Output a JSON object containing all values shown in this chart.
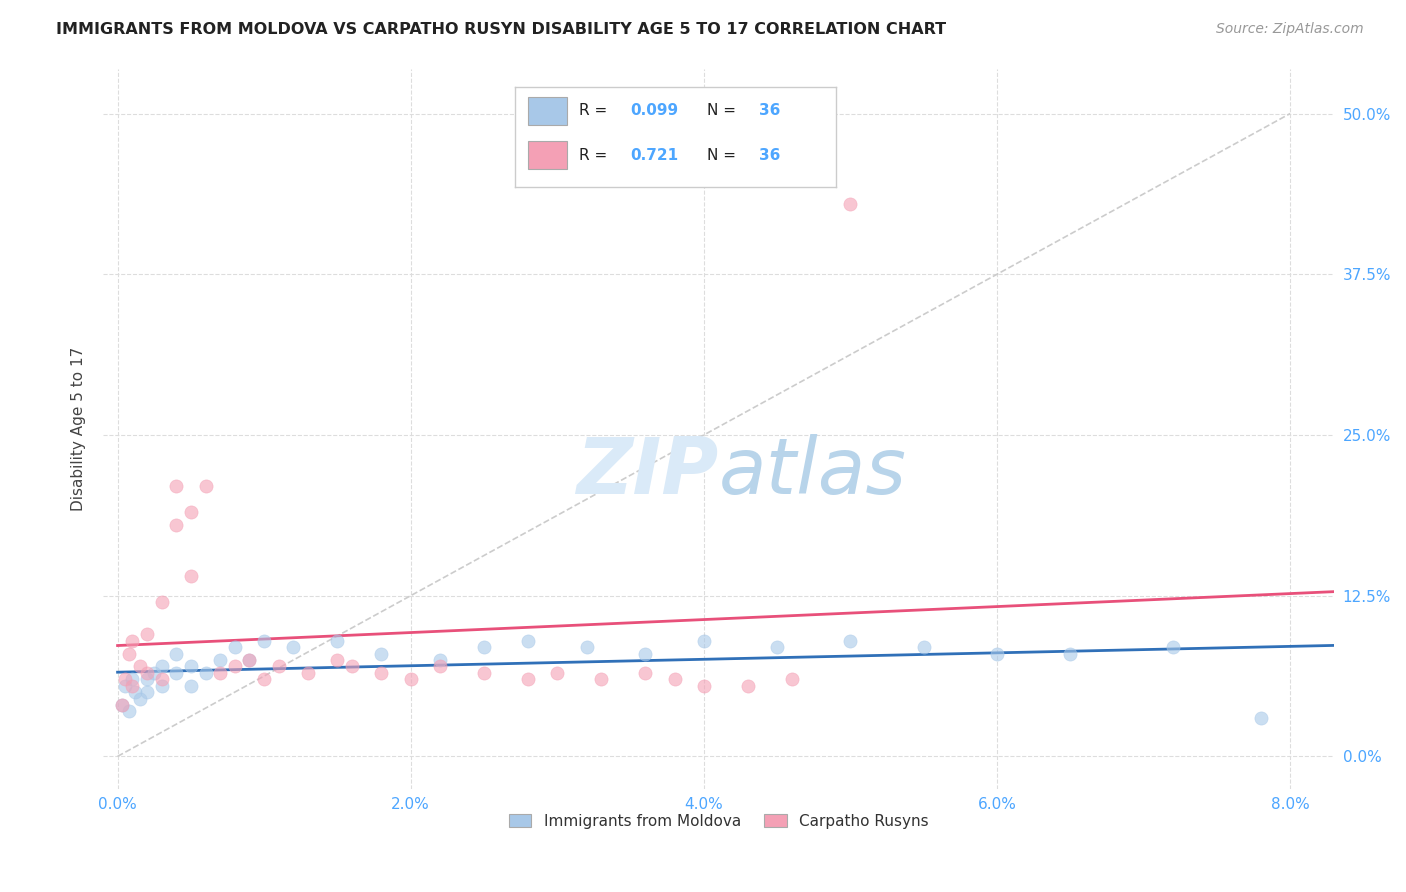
{
  "title": "IMMIGRANTS FROM MOLDOVA VS CARPATHO RUSYN DISABILITY AGE 5 TO 17 CORRELATION CHART",
  "source": "Source: ZipAtlas.com",
  "ylabel": "Disability Age 5 to 17",
  "xlabel_ticks": [
    "0.0%",
    "2.0%",
    "4.0%",
    "6.0%",
    "8.0%"
  ],
  "xlabel_vals": [
    0.0,
    0.02,
    0.04,
    0.06,
    0.08
  ],
  "ylabel_ticks": [
    "0.0%",
    "12.5%",
    "25.0%",
    "37.5%",
    "50.0%"
  ],
  "ylabel_vals": [
    0.0,
    0.125,
    0.25,
    0.375,
    0.5
  ],
  "xlim": [
    -0.001,
    0.083
  ],
  "ylim": [
    -0.025,
    0.535
  ],
  "moldova_R": 0.099,
  "moldova_N": 36,
  "carpatho_R": 0.721,
  "carpatho_N": 36,
  "moldova_color": "#a8c8e8",
  "carpatho_color": "#f4a0b5",
  "moldova_line_color": "#3070b8",
  "carpatho_line_color": "#e8507a",
  "diagonal_color": "#cccccc",
  "background_color": "#ffffff",
  "grid_color": "#dddddd",
  "title_color": "#222222",
  "source_color": "#999999",
  "tick_color": "#4da6ff",
  "legend_label_color": "#222222",
  "legend_value_color": "#4da6ff",
  "watermark_color": "#daeaf8",
  "moldova_x": [
    0.0003,
    0.0005,
    0.0008,
    0.001,
    0.0012,
    0.0015,
    0.002,
    0.002,
    0.0025,
    0.003,
    0.003,
    0.004,
    0.004,
    0.005,
    0.005,
    0.006,
    0.007,
    0.008,
    0.009,
    0.01,
    0.012,
    0.015,
    0.018,
    0.022,
    0.025,
    0.028,
    0.032,
    0.036,
    0.04,
    0.045,
    0.05,
    0.055,
    0.06,
    0.065,
    0.072,
    0.078
  ],
  "moldova_y": [
    0.04,
    0.055,
    0.035,
    0.06,
    0.05,
    0.045,
    0.06,
    0.05,
    0.065,
    0.07,
    0.055,
    0.08,
    0.065,
    0.07,
    0.055,
    0.065,
    0.075,
    0.085,
    0.075,
    0.09,
    0.085,
    0.09,
    0.08,
    0.075,
    0.085,
    0.09,
    0.085,
    0.08,
    0.09,
    0.085,
    0.09,
    0.085,
    0.08,
    0.08,
    0.085,
    0.03
  ],
  "carpatho_x": [
    0.0003,
    0.0005,
    0.0008,
    0.001,
    0.001,
    0.0015,
    0.002,
    0.002,
    0.003,
    0.003,
    0.004,
    0.004,
    0.005,
    0.005,
    0.006,
    0.007,
    0.008,
    0.009,
    0.01,
    0.011,
    0.013,
    0.015,
    0.016,
    0.018,
    0.02,
    0.022,
    0.025,
    0.028,
    0.03,
    0.033,
    0.036,
    0.038,
    0.04,
    0.043,
    0.046,
    0.05
  ],
  "carpatho_y": [
    0.04,
    0.06,
    0.08,
    0.055,
    0.09,
    0.07,
    0.065,
    0.095,
    0.12,
    0.06,
    0.18,
    0.21,
    0.19,
    0.14,
    0.21,
    0.065,
    0.07,
    0.075,
    0.06,
    0.07,
    0.065,
    0.075,
    0.07,
    0.065,
    0.06,
    0.07,
    0.065,
    0.06,
    0.065,
    0.06,
    0.065,
    0.06,
    0.055,
    0.055,
    0.06,
    0.43
  ]
}
